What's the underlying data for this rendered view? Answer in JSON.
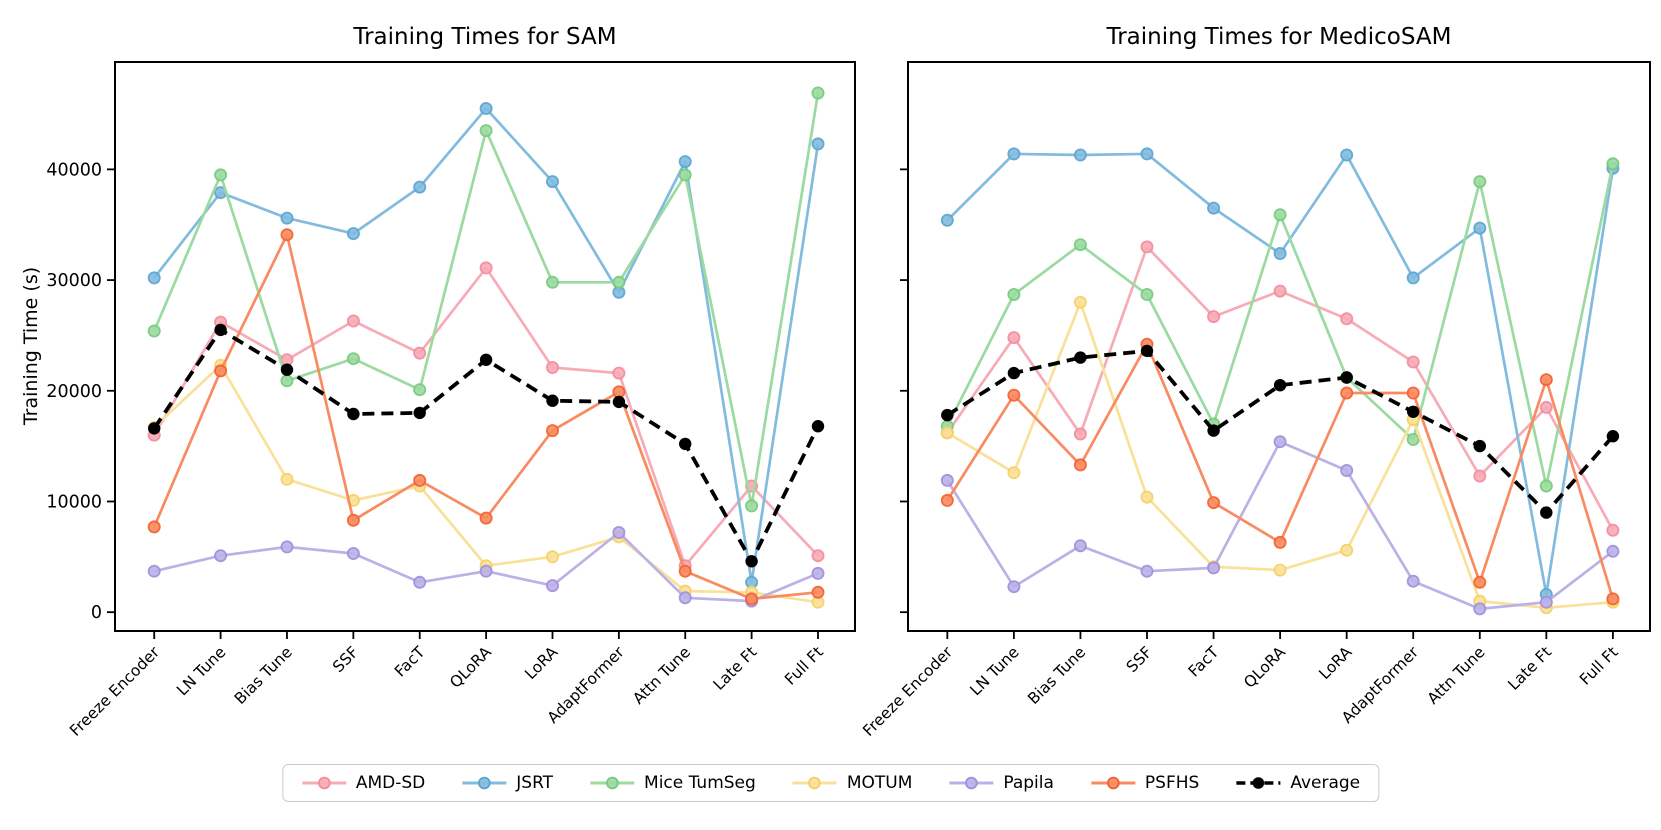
{
  "figure": {
    "ylabel": "Training Time (s)",
    "yticks": [
      0,
      10000,
      20000,
      30000,
      40000
    ],
    "background": "#ffffff",
    "axis_color": "#000000"
  },
  "legend": {
    "entries": [
      {
        "label": "AMD-SD",
        "color": "#F7ABB6",
        "edge": "#F28C9C",
        "dashed": false
      },
      {
        "label": "JSRT",
        "color": "#82BBDE",
        "edge": "#5BA4D0",
        "dashed": false
      },
      {
        "label": "Mice TumSeg",
        "color": "#9BDAA0",
        "edge": "#74CA7D",
        "dashed": false
      },
      {
        "label": "MOTUM",
        "color": "#FAE199",
        "edge": "#F6CF63",
        "dashed": false
      },
      {
        "label": "Papila",
        "color": "#BCB1E7",
        "edge": "#9F8FDC",
        "dashed": false
      },
      {
        "label": "PSFHS",
        "color": "#F88B62",
        "edge": "#F4602B",
        "dashed": false
      },
      {
        "label": "Average",
        "color": "#000000",
        "edge": "#000000",
        "dashed": true
      }
    ]
  },
  "chart_data": [
    {
      "type": "line",
      "title": "Training Times for SAM",
      "ylabel": "Training Time (s)",
      "xlabel": "",
      "ylim": [
        -1700,
        49700
      ],
      "yticks": [
        0,
        10000,
        20000,
        30000,
        40000
      ],
      "grid": false,
      "legend_position": "shared-bottom-center",
      "categories": [
        "Freeze Encoder",
        "LN Tune",
        "Bias Tune",
        "SSF",
        "FacT",
        "QLoRA",
        "LoRA",
        "AdaptFormer",
        "Attn Tune",
        "Late Ft",
        "Full Ft"
      ],
      "series": [
        {
          "name": "AMD-SD",
          "values": [
            16000,
            26200,
            22800,
            26300,
            23400,
            31100,
            22100,
            21600,
            4200,
            11400,
            5100
          ]
        },
        {
          "name": "JSRT",
          "values": [
            30200,
            37900,
            35600,
            34200,
            38400,
            45500,
            38900,
            28900,
            40700,
            2700,
            42300
          ]
        },
        {
          "name": "Mice TumSeg",
          "values": [
            25400,
            39500,
            20900,
            22900,
            20100,
            43500,
            29800,
            29800,
            39500,
            9600,
            46900
          ]
        },
        {
          "name": "MOTUM",
          "values": [
            16700,
            22300,
            12000,
            10100,
            11400,
            4200,
            5000,
            6800,
            1900,
            1800,
            900
          ]
        },
        {
          "name": "Papila",
          "values": [
            3700,
            5100,
            5900,
            5300,
            2700,
            3700,
            2400,
            7200,
            1300,
            1000,
            3500
          ]
        },
        {
          "name": "PSFHS",
          "values": [
            7700,
            21800,
            34100,
            8300,
            11900,
            8500,
            16400,
            19900,
            3700,
            1200,
            1800
          ]
        },
        {
          "name": "Average",
          "values": [
            16600,
            25500,
            21900,
            17900,
            18000,
            22800,
            19100,
            19000,
            15200,
            4600,
            16800
          ]
        }
      ]
    },
    {
      "type": "line",
      "title": "Training Times for MedicoSAM",
      "ylabel": "",
      "xlabel": "",
      "ylim": [
        -1700,
        49700
      ],
      "yticks": [
        0,
        10000,
        20000,
        30000,
        40000
      ],
      "show_ytick_labels": false,
      "grid": false,
      "legend_position": "shared-bottom-center",
      "categories": [
        "Freeze Encoder",
        "LN Tune",
        "Bias Tune",
        "SSF",
        "FacT",
        "QLoRA",
        "LoRA",
        "AdaptFormer",
        "Attn Tune",
        "Late Ft",
        "Full Ft"
      ],
      "series": [
        {
          "name": "AMD-SD",
          "values": [
            16200,
            24800,
            16100,
            33000,
            26700,
            29000,
            26500,
            22600,
            12300,
            18500,
            7400
          ]
        },
        {
          "name": "JSRT",
          "values": [
            35400,
            41400,
            41300,
            41400,
            36500,
            32400,
            41300,
            30200,
            34700,
            1600,
            40100
          ]
        },
        {
          "name": "Mice TumSeg",
          "values": [
            16800,
            28700,
            33200,
            28700,
            17000,
            35900,
            21200,
            15600,
            38900,
            11400,
            40500
          ]
        },
        {
          "name": "MOTUM",
          "values": [
            16200,
            12600,
            28000,
            10400,
            4100,
            3800,
            5600,
            17400,
            1000,
            400,
            900
          ]
        },
        {
          "name": "Papila",
          "values": [
            11900,
            2300,
            6000,
            3700,
            4000,
            15400,
            12800,
            2800,
            300,
            900,
            5500
          ]
        },
        {
          "name": "PSFHS",
          "values": [
            10100,
            19600,
            13300,
            24200,
            9900,
            6300,
            19800,
            19800,
            2700,
            21000,
            1200
          ]
        },
        {
          "name": "Average",
          "values": [
            17800,
            21600,
            23000,
            23600,
            16400,
            20500,
            21200,
            18100,
            15000,
            9000,
            15900
          ]
        }
      ]
    }
  ]
}
